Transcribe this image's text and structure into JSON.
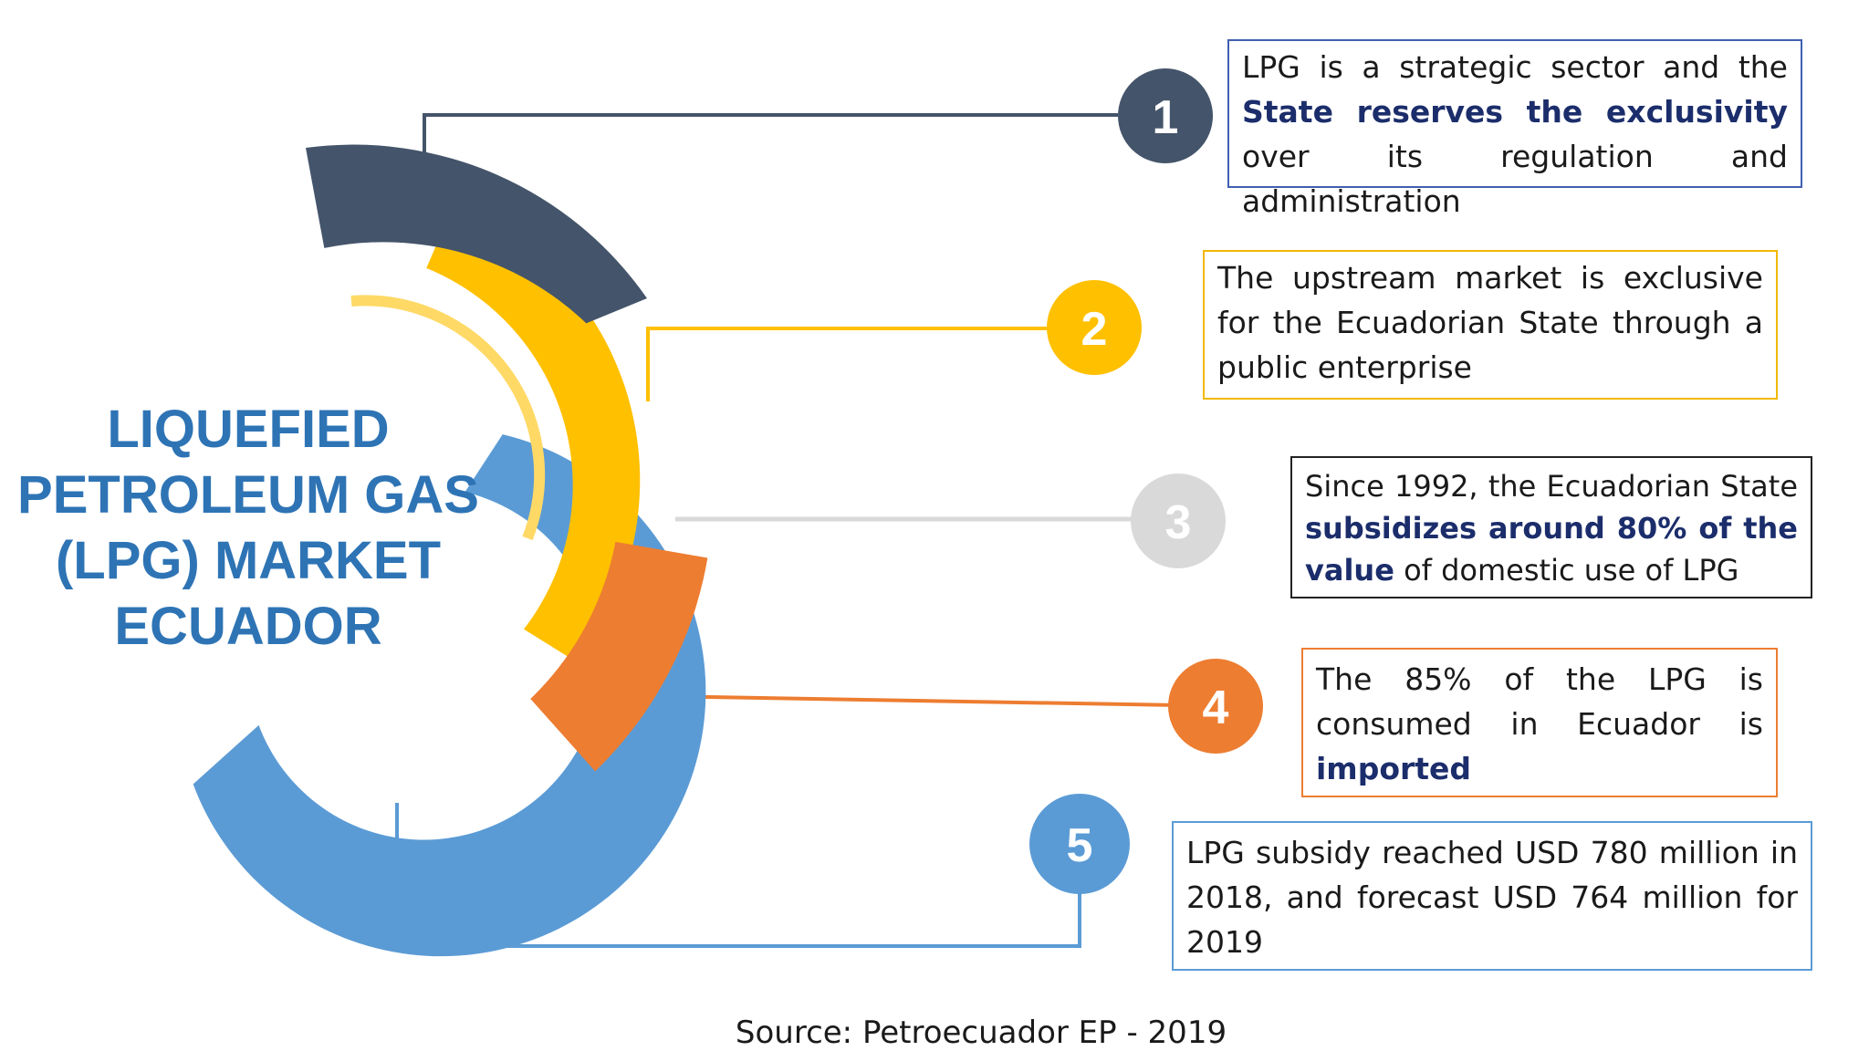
{
  "title": {
    "line1": "LIQUEFIED",
    "line2": "PETROLEUM GAS",
    "line3": "(LPG) MARKET",
    "line4": "ECUADOR"
  },
  "colors": {
    "dark": "#44546a",
    "yellow": "#ffc000",
    "gray": "#d9d9d9",
    "orange": "#ed7d31",
    "blue": "#5b9bd5",
    "title": "#2e74b5",
    "bold_text": "#1b2d6b"
  },
  "facts": [
    {
      "number": "1",
      "segments": [
        {
          "text": "LPG is a strategic sector and the ",
          "bold": false
        },
        {
          "text": "State reserves the exclusivity",
          "bold": true
        },
        {
          "text": " over its regulation and administration",
          "bold": false
        }
      ]
    },
    {
      "number": "2",
      "segments": [
        {
          "text": "The upstream market is exclusive for the Ecuadorian State through a public enterprise",
          "bold": false
        }
      ]
    },
    {
      "number": "3",
      "segments": [
        {
          "text": "Since 1992, the Ecuadorian State ",
          "bold": false
        },
        {
          "text": "subsidizes around 80% of the value",
          "bold": true
        },
        {
          "text": " of domestic use of LPG",
          "bold": false
        }
      ]
    },
    {
      "number": "4",
      "segments": [
        {
          "text": "The 85% of the LPG is consumed in Ecuador is ",
          "bold": false
        },
        {
          "text": "imported",
          "bold": true
        }
      ]
    },
    {
      "number": "5",
      "segments": [
        {
          "text": "LPG subsidy reached USD 780 million in 2018, and forecast USD 764 million for 2019",
          "bold": false
        }
      ]
    }
  ],
  "source": "Source: Petroecuador EP - 2019"
}
